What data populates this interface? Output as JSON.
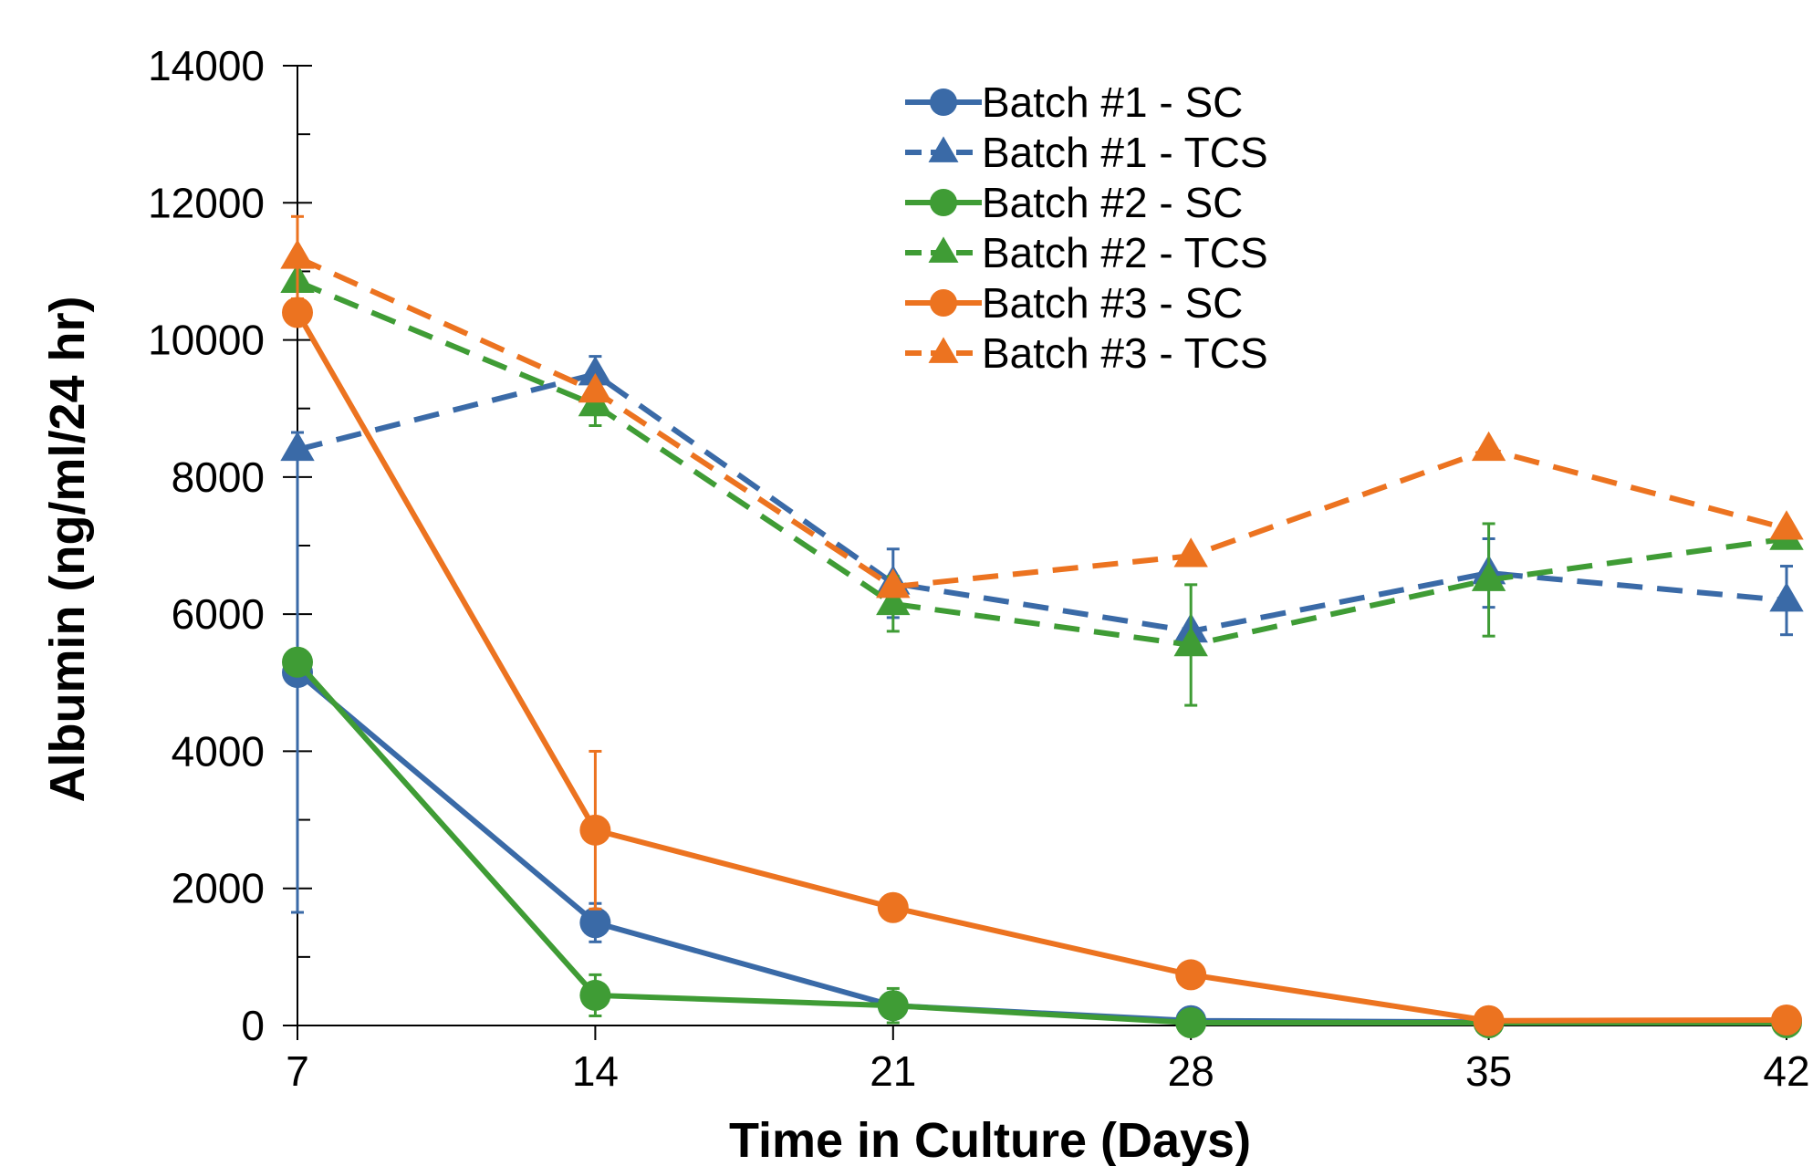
{
  "chart_data": {
    "type": "line",
    "title": "",
    "xlabel": "Time in Culture (Days)",
    "ylabel": "Albumin (ng/ml/24 hr)",
    "x": [
      7,
      14,
      21,
      28,
      35,
      42
    ],
    "x_ticks": [
      "7",
      "14",
      "21",
      "28",
      "35",
      "42"
    ],
    "xlim": [
      7,
      42
    ],
    "ylim": [
      0,
      14000
    ],
    "y_ticks": [
      "0",
      "2000",
      "4000",
      "6000",
      "8000",
      "10000",
      "12000",
      "14000"
    ],
    "y_minor_step": 1000,
    "grid": false,
    "legend_position": "top-center",
    "series": [
      {
        "name": "Batch #1 - SC",
        "color": "#3a6aa7",
        "marker": "circle",
        "dash": "solid",
        "values": [
          5150,
          1500,
          290,
          70,
          50,
          70
        ],
        "errors": [
          3500,
          280,
          180,
          0,
          0,
          0
        ]
      },
      {
        "name": "Batch #1 - TCS",
        "color": "#3a6aa7",
        "marker": "triangle",
        "dash": "dashed",
        "values": [
          8400,
          9500,
          6450,
          5750,
          6600,
          6200
        ],
        "errors": [
          0,
          260,
          500,
          0,
          500,
          500
        ]
      },
      {
        "name": "Batch #2 - SC",
        "color": "#3f9c35",
        "marker": "circle",
        "dash": "solid",
        "values": [
          5300,
          440,
          290,
          40,
          40,
          40
        ],
        "errors": [
          0,
          300,
          250,
          0,
          0,
          0
        ]
      },
      {
        "name": "Batch #2 - TCS",
        "color": "#3f9c35",
        "marker": "triangle",
        "dash": "dashed",
        "values": [
          10850,
          9050,
          6150,
          5550,
          6500,
          7100
        ],
        "errors": [
          0,
          300,
          400,
          880,
          820,
          0
        ]
      },
      {
        "name": "Batch #3 - SC",
        "color": "#ec7320",
        "marker": "circle",
        "dash": "solid",
        "values": [
          10400,
          2850,
          1720,
          740,
          70,
          80
        ],
        "errors": [
          0,
          1150,
          0,
          0,
          0,
          0
        ]
      },
      {
        "name": "Batch #3 - TCS",
        "color": "#ec7320",
        "marker": "triangle",
        "dash": "dashed",
        "values": [
          11200,
          9250,
          6400,
          6850,
          8400,
          7250
        ],
        "errors": [
          600,
          0,
          0,
          0,
          0,
          0
        ]
      }
    ]
  }
}
